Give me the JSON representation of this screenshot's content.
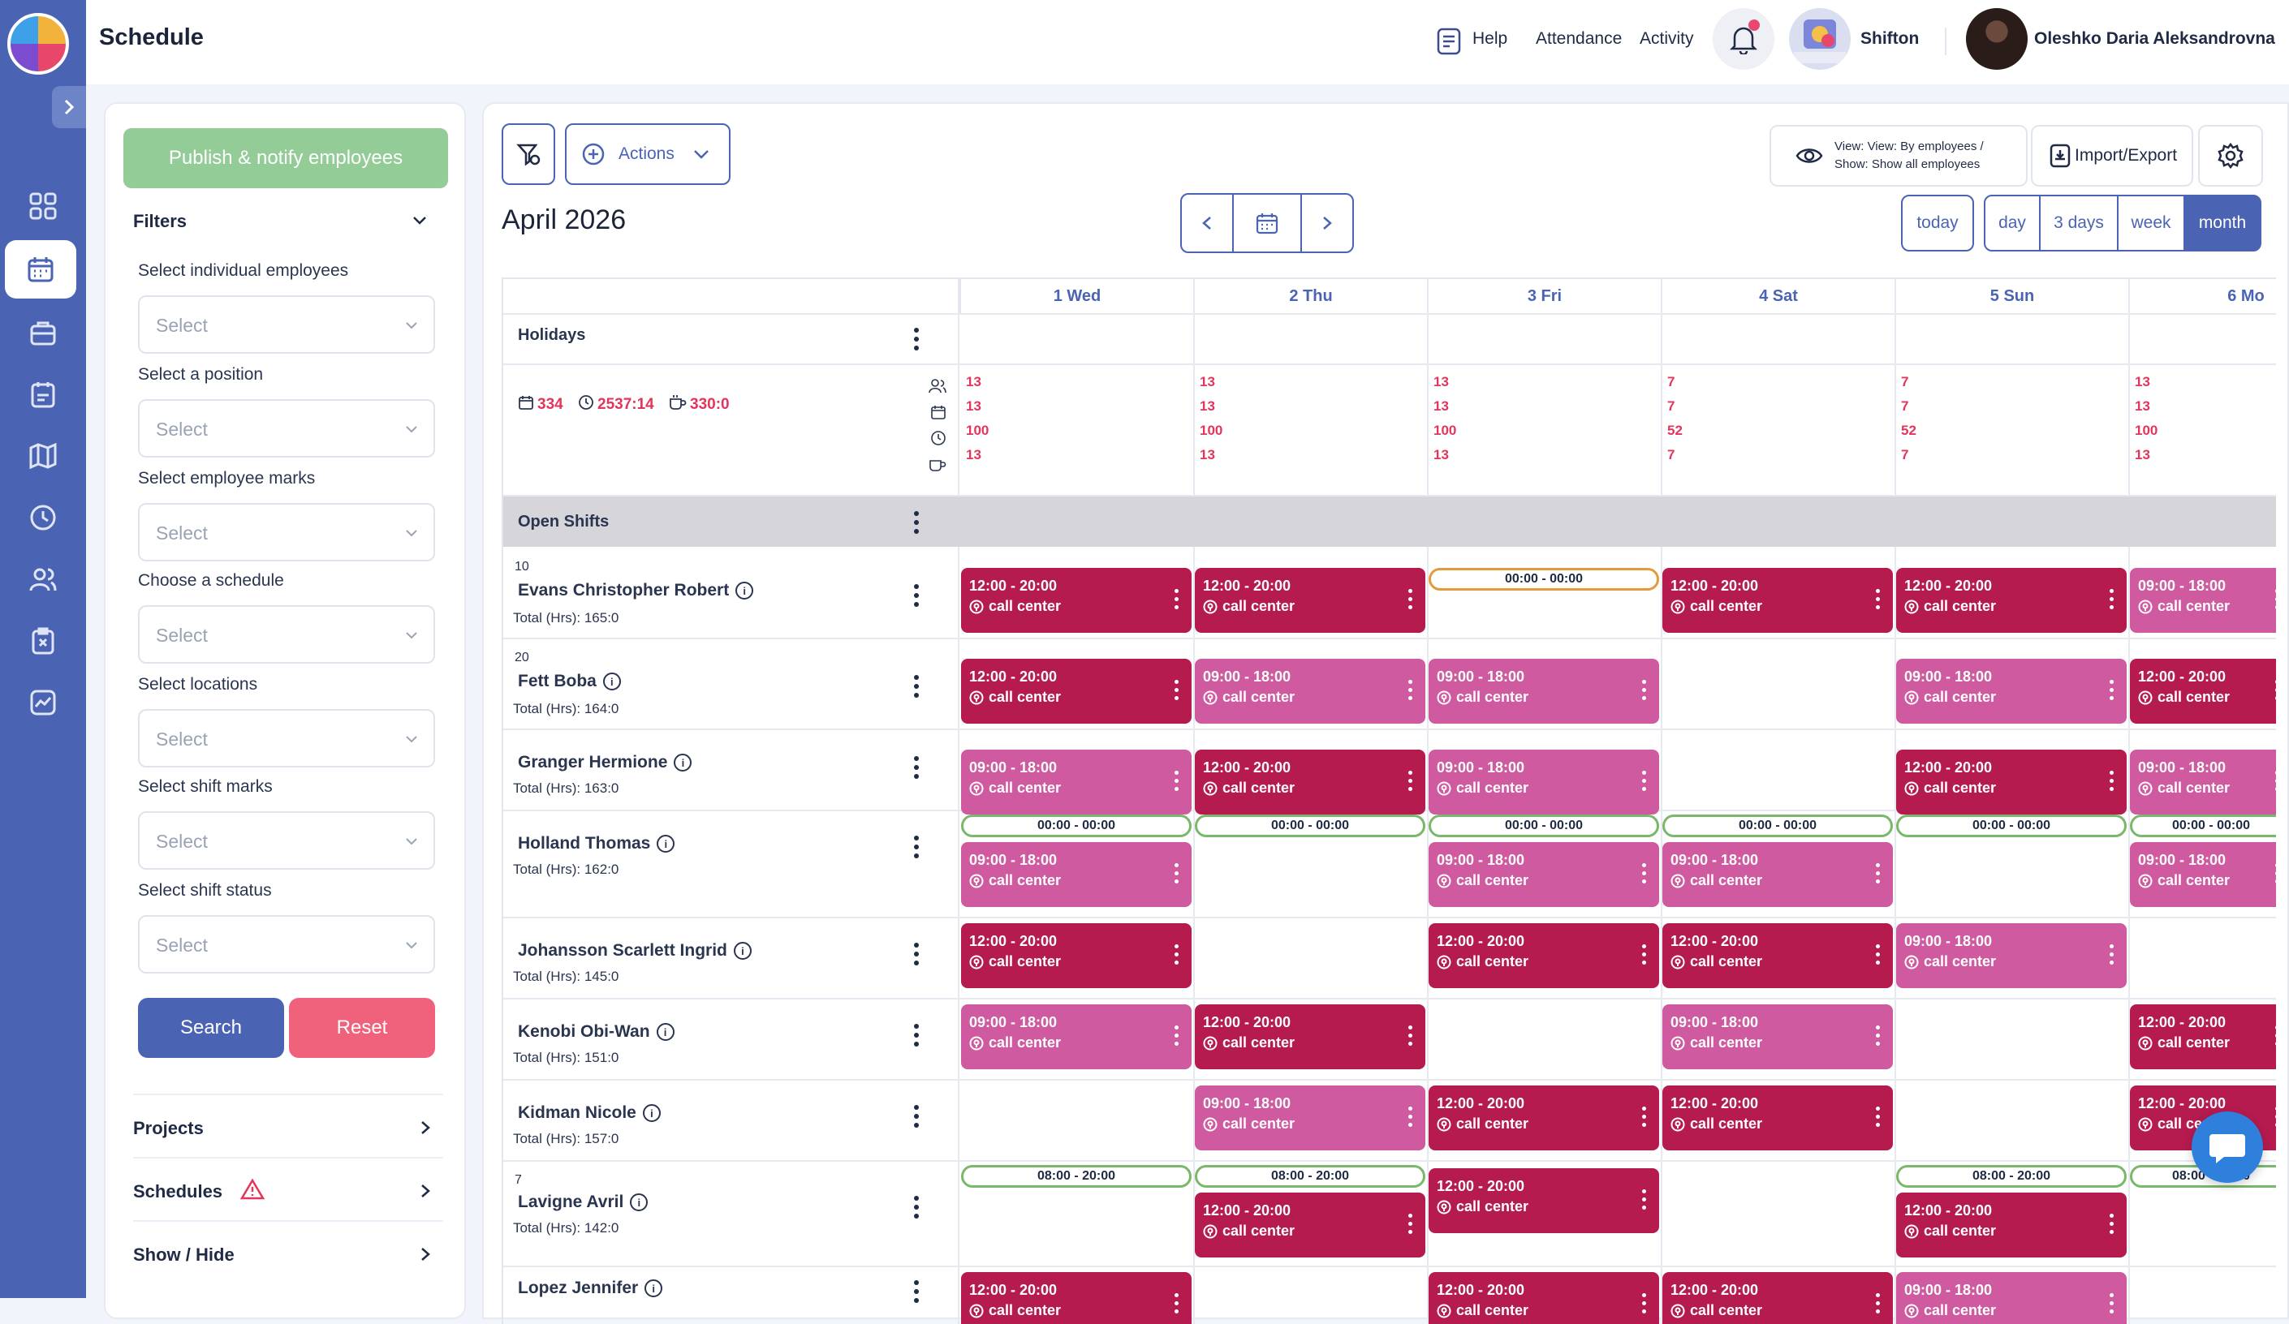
{
  "header": {
    "title": "Schedule",
    "help": "Help",
    "attendance": "Attendance",
    "activity": "Activity",
    "org_name": "Shifton",
    "user_name": "Oleshko Daria Aleksandrovna"
  },
  "rail": {
    "icons": [
      "dashboard-icon",
      "calendar-icon",
      "briefcase-icon",
      "checklist-icon",
      "map-icon",
      "clock-icon",
      "users-icon",
      "clipboard-x-icon",
      "chart-icon"
    ]
  },
  "filters": {
    "publish": "Publish & notify employees",
    "title": "Filters",
    "fields": [
      {
        "label": "Select individual employees",
        "placeholder": "Select"
      },
      {
        "label": "Select a position",
        "placeholder": "Select"
      },
      {
        "label": "Select employee marks",
        "placeholder": "Select"
      },
      {
        "label": "Choose a schedule",
        "placeholder": "Select"
      },
      {
        "label": "Select locations",
        "placeholder": "Select"
      },
      {
        "label": "Select shift marks",
        "placeholder": "Select"
      },
      {
        "label": "Select shift status",
        "placeholder": "Select"
      }
    ],
    "search": "Search",
    "reset": "Reset",
    "sections": [
      "Projects",
      "Schedules",
      "Show / Hide"
    ]
  },
  "toolbar": {
    "actions": "Actions",
    "view_line1": "View: View: By employees /",
    "view_line2": "Show: Show all employees",
    "import_export": "Import/Export"
  },
  "calendar": {
    "month_title": "April 2026",
    "views": [
      "today",
      "day",
      "3 days",
      "week",
      "month"
    ],
    "active_view": "month",
    "days": [
      "1 Wed",
      "2 Thu",
      "3 Fri",
      "4 Sat",
      "5 Sun",
      "6 Mo"
    ],
    "holidays_label": "Holidays",
    "totals": {
      "shifts": "334",
      "hours": "2537:14",
      "breaks": "330:0"
    },
    "day_stats": [
      [
        "13",
        "13",
        "100",
        "13"
      ],
      [
        "13",
        "13",
        "100",
        "13"
      ],
      [
        "13",
        "13",
        "100",
        "13"
      ],
      [
        "7",
        "7",
        "52",
        "7"
      ],
      [
        "7",
        "7",
        "52",
        "7"
      ],
      [
        "13",
        "13",
        "100",
        "13"
      ]
    ],
    "open_shifts_label": "Open Shifts"
  },
  "employees": [
    {
      "num": "10",
      "name": "Evans Christopher Robert",
      "total": "Total (Hrs): 165:0"
    },
    {
      "num": "20",
      "name": "Fett Boba",
      "total": "Total (Hrs): 164:0"
    },
    {
      "num": "",
      "name": "Granger Hermione",
      "total": "Total (Hrs): 163:0"
    },
    {
      "num": "",
      "name": "Holland Thomas",
      "total": "Total (Hrs): 162:0"
    },
    {
      "num": "",
      "name": "Johansson Scarlett Ingrid",
      "total": "Total (Hrs): 145:0"
    },
    {
      "num": "",
      "name": "Kenobi Obi-Wan",
      "total": "Total (Hrs): 151:0"
    },
    {
      "num": "",
      "name": "Kidman Nicole",
      "total": "Total (Hrs): 157:0"
    },
    {
      "num": "7",
      "name": "Lavigne Avril",
      "total": "Total (Hrs): 142:0"
    },
    {
      "num": "",
      "name": "Lopez Jennifer",
      "total": ""
    }
  ],
  "shift_texts": {
    "t1220": "12:00 - 20:00",
    "t0918": "09:00 - 18:00",
    "t0000": "00:00 - 00:00",
    "t0820": "08:00 - 20:00",
    "loc": "call center"
  },
  "colors": {
    "primary": "#4a64b3",
    "shift_dark": "#b51b4e",
    "shift_light": "#cf5aa0",
    "publish": "#93cc97",
    "reset": "#f0627c",
    "stat_red": "#e3355b"
  }
}
